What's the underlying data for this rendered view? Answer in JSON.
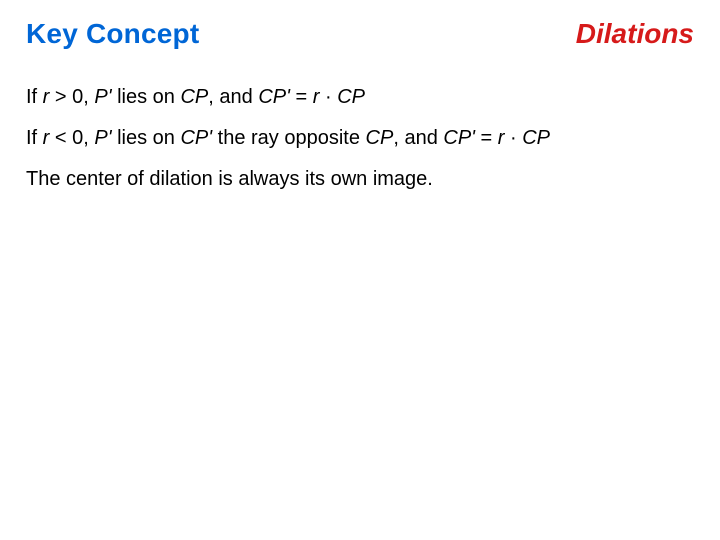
{
  "colors": {
    "key_concept": "#0066d6",
    "topic": "#d61a1a",
    "body_text": "#000000",
    "background": "#ffffff"
  },
  "typography": {
    "header_fontsize_pt": 21,
    "body_fontsize_pt": 15,
    "font_family": "Arial"
  },
  "header": {
    "key_concept": "Key Concept",
    "topic": "Dilations"
  },
  "line1": {
    "p1": "If ",
    "r": "r",
    "p2": " > 0, ",
    "pprime": "P'",
    "p3": " lies on ",
    "cp1": "CP",
    "p4": ", and ",
    "cpprime": "CP'",
    "p5": " = ",
    "r2": "r",
    "dot": " · ",
    "cp2": "CP"
  },
  "line2": {
    "p1": "If ",
    "r": "r",
    "p2": " < 0, ",
    "pprime": "P'",
    "p3": " lies on ",
    "cpprime1": "CP'",
    "p4": " the ray opposite ",
    "cp1": "CP",
    "p5": ", and ",
    "cpprime2": "CP'",
    "p6": " = ",
    "r2": "r",
    "dot": " · ",
    "cp2": "CP"
  },
  "line3": {
    "text": "The center of dilation is always its own image."
  }
}
